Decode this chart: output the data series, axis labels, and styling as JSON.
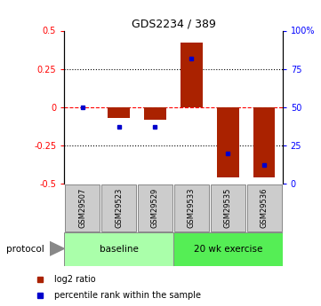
{
  "title": "GDS2234 / 389",
  "samples": [
    "GSM29507",
    "GSM29523",
    "GSM29529",
    "GSM29533",
    "GSM29535",
    "GSM29536"
  ],
  "log2_ratio": [
    0.0,
    -0.07,
    -0.08,
    0.42,
    -0.46,
    -0.46
  ],
  "percentile_rank": [
    50,
    37,
    37,
    82,
    20,
    12
  ],
  "groups": [
    {
      "label": "baseline",
      "color": "#aaffaa"
    },
    {
      "label": "20 wk exercise",
      "color": "#55ee55"
    }
  ],
  "ylim_left": [
    -0.5,
    0.5
  ],
  "ylim_right": [
    0,
    100
  ],
  "yticks_left": [
    -0.5,
    -0.25,
    0.0,
    0.25,
    0.5
  ],
  "ytick_labels_left": [
    "-0.5",
    "-0.25",
    "0",
    "0.25",
    "0.5"
  ],
  "yticks_right": [
    0,
    25,
    50,
    75,
    100
  ],
  "ytick_labels_right": [
    "0",
    "25",
    "50",
    "75",
    "100%"
  ],
  "bar_color": "#aa2200",
  "dot_color": "#0000cc",
  "bg_color": "#ffffff",
  "protocol_label": "protocol",
  "legend_items": [
    {
      "label": "log2 ratio",
      "color": "#aa2200"
    },
    {
      "label": "percentile rank within the sample",
      "color": "#0000cc"
    }
  ]
}
